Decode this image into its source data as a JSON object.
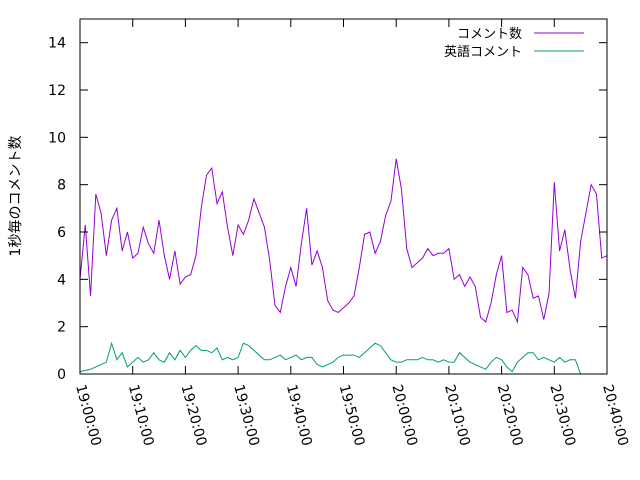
{
  "chart_data": {
    "type": "line",
    "title": "",
    "xlabel": "",
    "ylabel": "1秒毎のコメント数",
    "x_axis": {
      "ticks": [
        "19:00:00",
        "19:10:00",
        "19:20:00",
        "19:30:00",
        "19:40:00",
        "19:50:00",
        "20:00:00",
        "20:10:00",
        "20:20:00",
        "20:30:00",
        "20:40:00"
      ],
      "range_minutes": [
        0,
        100
      ]
    },
    "ylim": [
      0,
      15
    ],
    "y_ticks": [
      0,
      2,
      4,
      6,
      8,
      10,
      12,
      14
    ],
    "grid": false,
    "legend_position": "top-right",
    "series": [
      {
        "name": "コメント数",
        "color": "#9400d3",
        "points": [
          [
            0.0,
            4.0
          ],
          [
            1.0,
            6.3
          ],
          [
            2.0,
            3.3
          ],
          [
            3.0,
            7.6
          ],
          [
            4.0,
            6.8
          ],
          [
            5.0,
            5.0
          ],
          [
            6.0,
            6.5
          ],
          [
            7.0,
            7.0
          ],
          [
            8.0,
            5.2
          ],
          [
            9.0,
            6.0
          ],
          [
            10.0,
            4.9
          ],
          [
            11.0,
            5.1
          ],
          [
            12.0,
            6.2
          ],
          [
            13.0,
            5.5
          ],
          [
            14.0,
            5.1
          ],
          [
            15.0,
            6.5
          ],
          [
            16.0,
            5.0
          ],
          [
            17.0,
            4.0
          ],
          [
            18.0,
            5.2
          ],
          [
            19.0,
            3.8
          ],
          [
            20.0,
            4.1
          ],
          [
            21.0,
            4.2
          ],
          [
            22.0,
            5.0
          ],
          [
            23.0,
            7.0
          ],
          [
            24.0,
            8.4
          ],
          [
            25.0,
            8.7
          ],
          [
            26.0,
            7.2
          ],
          [
            27.0,
            7.7
          ],
          [
            28.0,
            6.2
          ],
          [
            29.0,
            5.0
          ],
          [
            30.0,
            6.3
          ],
          [
            31.0,
            5.9
          ],
          [
            32.0,
            6.5
          ],
          [
            33.0,
            7.4
          ],
          [
            34.0,
            6.8
          ],
          [
            35.0,
            6.2
          ],
          [
            36.0,
            4.8
          ],
          [
            37.0,
            2.9
          ],
          [
            38.0,
            2.6
          ],
          [
            39.0,
            3.7
          ],
          [
            40.0,
            4.5
          ],
          [
            41.0,
            3.7
          ],
          [
            42.0,
            5.5
          ],
          [
            43.0,
            7.0
          ],
          [
            44.0,
            4.6
          ],
          [
            45.0,
            5.2
          ],
          [
            46.0,
            4.5
          ],
          [
            47.0,
            3.1
          ],
          [
            48.0,
            2.7
          ],
          [
            49.0,
            2.6
          ],
          [
            50.0,
            2.8
          ],
          [
            51.0,
            3.0
          ],
          [
            52.0,
            3.3
          ],
          [
            53.0,
            4.5
          ],
          [
            54.0,
            5.9
          ],
          [
            55.0,
            6.0
          ],
          [
            56.0,
            5.1
          ],
          [
            57.0,
            5.6
          ],
          [
            58.0,
            6.7
          ],
          [
            59.0,
            7.3
          ],
          [
            60.0,
            9.1
          ],
          [
            61.0,
            7.8
          ],
          [
            62.0,
            5.3
          ],
          [
            63.0,
            4.5
          ],
          [
            64.0,
            4.7
          ],
          [
            65.0,
            4.9
          ],
          [
            66.0,
            5.3
          ],
          [
            67.0,
            5.0
          ],
          [
            68.0,
            5.1
          ],
          [
            69.0,
            5.1
          ],
          [
            70.0,
            5.3
          ],
          [
            71.0,
            4.0
          ],
          [
            72.0,
            4.2
          ],
          [
            73.0,
            3.7
          ],
          [
            74.0,
            4.1
          ],
          [
            75.0,
            3.7
          ],
          [
            76.0,
            2.4
          ],
          [
            77.0,
            2.2
          ],
          [
            78.0,
            3.0
          ],
          [
            79.0,
            4.2
          ],
          [
            80.0,
            5.0
          ],
          [
            81.0,
            2.6
          ],
          [
            82.0,
            2.7
          ],
          [
            83.0,
            2.2
          ],
          [
            84.0,
            4.5
          ],
          [
            85.0,
            4.2
          ],
          [
            86.0,
            3.2
          ],
          [
            87.0,
            3.3
          ],
          [
            88.0,
            2.3
          ],
          [
            89.0,
            3.4
          ],
          [
            90.0,
            8.1
          ],
          [
            91.0,
            5.2
          ],
          [
            92.0,
            6.1
          ],
          [
            93.0,
            4.4
          ],
          [
            94.0,
            3.2
          ],
          [
            95.0,
            5.6
          ],
          [
            96.0,
            6.8
          ],
          [
            97.0,
            8.0
          ],
          [
            98.0,
            7.6
          ],
          [
            99.0,
            4.9
          ],
          [
            100.0,
            5.0
          ]
        ]
      },
      {
        "name": "英語コメント",
        "color": "#009e73",
        "points": [
          [
            0.0,
            0.1
          ],
          [
            1.0,
            0.15
          ],
          [
            2.0,
            0.2
          ],
          [
            3.0,
            0.3
          ],
          [
            4.0,
            0.4
          ],
          [
            5.0,
            0.5
          ],
          [
            6.0,
            1.3
          ],
          [
            7.0,
            0.6
          ],
          [
            8.0,
            0.9
          ],
          [
            9.0,
            0.3
          ],
          [
            10.0,
            0.5
          ],
          [
            11.0,
            0.7
          ],
          [
            12.0,
            0.5
          ],
          [
            13.0,
            0.6
          ],
          [
            14.0,
            0.9
          ],
          [
            15.0,
            0.6
          ],
          [
            16.0,
            0.5
          ],
          [
            17.0,
            0.9
          ],
          [
            18.0,
            0.6
          ],
          [
            19.0,
            1.0
          ],
          [
            20.0,
            0.7
          ],
          [
            21.0,
            1.0
          ],
          [
            22.0,
            1.2
          ],
          [
            23.0,
            1.0
          ],
          [
            24.0,
            1.0
          ],
          [
            25.0,
            0.9
          ],
          [
            26.0,
            1.1
          ],
          [
            27.0,
            0.6
          ],
          [
            28.0,
            0.7
          ],
          [
            29.0,
            0.6
          ],
          [
            30.0,
            0.7
          ],
          [
            31.0,
            1.3
          ],
          [
            32.0,
            1.2
          ],
          [
            33.0,
            1.0
          ],
          [
            34.0,
            0.8
          ],
          [
            35.0,
            0.6
          ],
          [
            36.0,
            0.6
          ],
          [
            37.0,
            0.7
          ],
          [
            38.0,
            0.8
          ],
          [
            39.0,
            0.6
          ],
          [
            40.0,
            0.7
          ],
          [
            41.0,
            0.8
          ],
          [
            42.0,
            0.6
          ],
          [
            43.0,
            0.7
          ],
          [
            44.0,
            0.7
          ],
          [
            45.0,
            0.4
          ],
          [
            46.0,
            0.3
          ],
          [
            47.0,
            0.4
          ],
          [
            48.0,
            0.5
          ],
          [
            49.0,
            0.7
          ],
          [
            50.0,
            0.8
          ],
          [
            51.0,
            0.8
          ],
          [
            52.0,
            0.8
          ],
          [
            53.0,
            0.7
          ],
          [
            54.0,
            0.9
          ],
          [
            55.0,
            1.1
          ],
          [
            56.0,
            1.3
          ],
          [
            57.0,
            1.2
          ],
          [
            58.0,
            0.9
          ],
          [
            59.0,
            0.6
          ],
          [
            60.0,
            0.5
          ],
          [
            61.0,
            0.5
          ],
          [
            62.0,
            0.6
          ],
          [
            63.0,
            0.6
          ],
          [
            64.0,
            0.6
          ],
          [
            65.0,
            0.7
          ],
          [
            66.0,
            0.6
          ],
          [
            67.0,
            0.6
          ],
          [
            68.0,
            0.5
          ],
          [
            69.0,
            0.6
          ],
          [
            70.0,
            0.5
          ],
          [
            71.0,
            0.5
          ],
          [
            72.0,
            0.9
          ],
          [
            73.0,
            0.7
          ],
          [
            74.0,
            0.5
          ],
          [
            75.0,
            0.4
          ],
          [
            76.0,
            0.3
          ],
          [
            77.0,
            0.2
          ],
          [
            78.0,
            0.5
          ],
          [
            79.0,
            0.7
          ],
          [
            80.0,
            0.6
          ],
          [
            81.0,
            0.3
          ],
          [
            82.0,
            0.1
          ],
          [
            83.0,
            0.5
          ],
          [
            84.0,
            0.7
          ],
          [
            85.0,
            0.9
          ],
          [
            86.0,
            0.9
          ],
          [
            87.0,
            0.6
          ],
          [
            88.0,
            0.7
          ],
          [
            89.0,
            0.6
          ],
          [
            90.0,
            0.5
          ],
          [
            91.0,
            0.7
          ],
          [
            92.0,
            0.5
          ],
          [
            93.0,
            0.6
          ],
          [
            94.0,
            0.6
          ],
          [
            95.0,
            0.0
          ]
        ]
      }
    ]
  }
}
